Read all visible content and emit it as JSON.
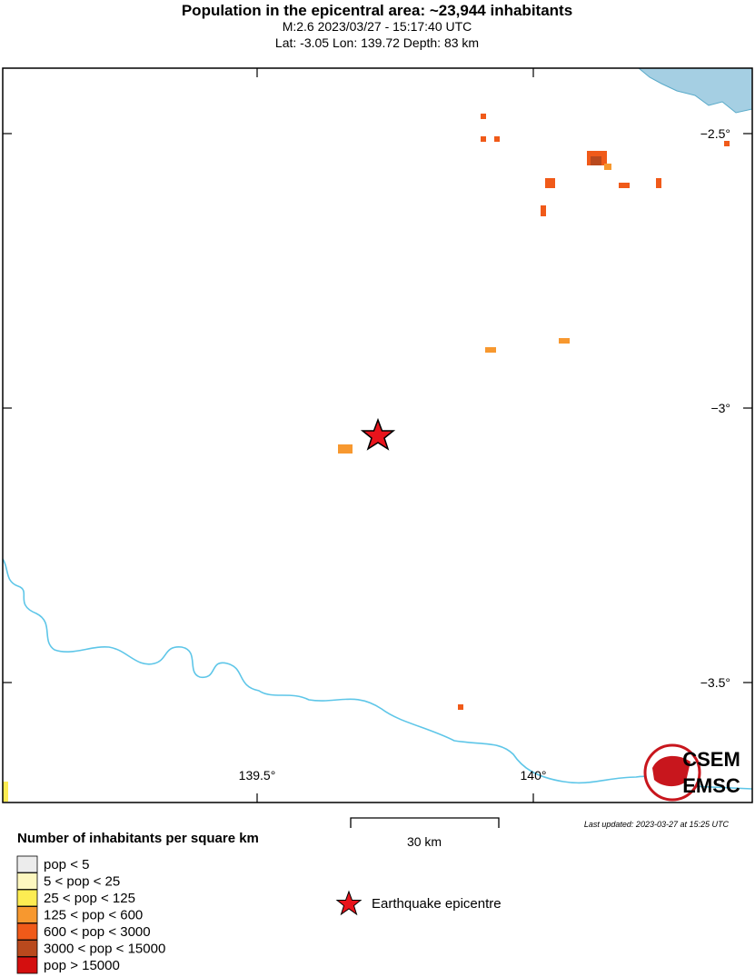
{
  "header": {
    "title": "Population in the epicentral area: ~23,944 inhabitants",
    "line1": "M:2.6 2023/03/27 - 15:17:40 UTC",
    "line2": "Lat: -3.05 Lon: 139.72 Depth: 83 km"
  },
  "map": {
    "lat_labels": [
      "−2.5°",
      "−3°",
      "−3.5°"
    ],
    "lon_labels": [
      "139.5°",
      "140°"
    ],
    "logo": [
      "CSEM",
      "EMSC"
    ]
  },
  "footer": {
    "updated": "Last updated: 2023-03-27 at 15:25 UTC",
    "scale": "30 km",
    "legend_title": "Number of inhabitants per square km",
    "legend": [
      {
        "label": "pop < 5",
        "color": "#ececec"
      },
      {
        "label": "5 < pop < 25",
        "color": "#fdf7bf"
      },
      {
        "label": "25 < pop < 125",
        "color": "#fdec52"
      },
      {
        "label": "125 < pop < 600",
        "color": "#f7982f"
      },
      {
        "label": "600 < pop < 3000",
        "color": "#f05a19"
      },
      {
        "label": "3000 < pop < 15000",
        "color": "#b9491d"
      },
      {
        "label": "pop > 15000",
        "color": "#d40f0f"
      }
    ],
    "epicentre": "Earthquake epicentre"
  }
}
